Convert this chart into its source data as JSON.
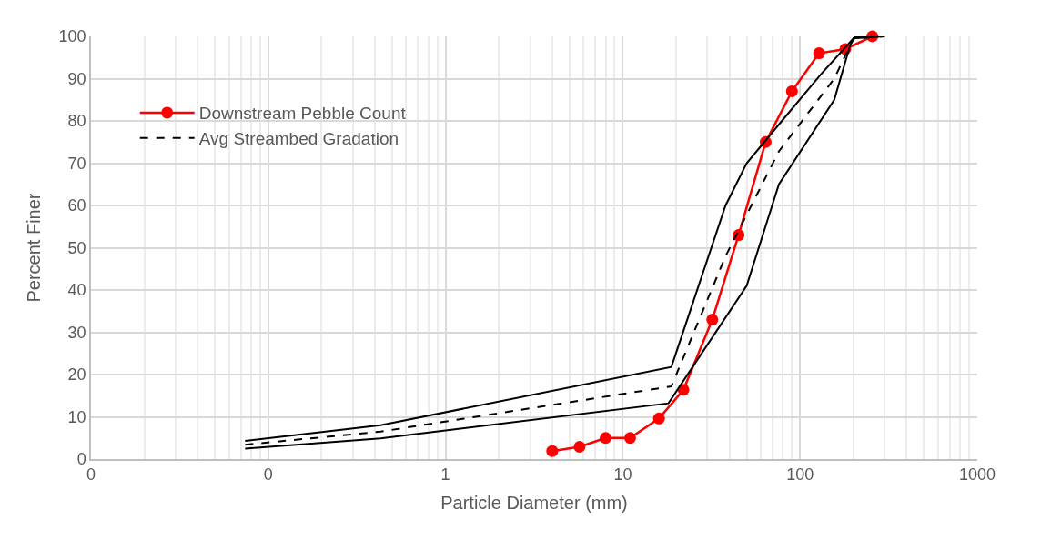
{
  "chart_data": {
    "type": "line",
    "xlabel": "Particle Diameter (mm)",
    "ylabel": "Percent Finer",
    "log": "x",
    "grid": true,
    "legend": "top left",
    "xlim": [
      0.01,
      1000
    ],
    "xticks": [
      {
        "value": 0.01,
        "label": "0"
      },
      {
        "value": 0.1,
        "label": "0"
      },
      1,
      10,
      100,
      1000
    ],
    "ylim": [
      0,
      100
    ],
    "yticks": [
      0,
      10,
      20,
      30,
      40,
      50,
      60,
      70,
      80,
      90,
      100
    ],
    "series": [
      {
        "name": "Downstream Pebble Count",
        "color": "#ff0000",
        "marker": "circle",
        "line_style": "solid",
        "x": [
          4,
          5.7,
          8,
          11,
          16,
          22,
          32,
          45,
          64,
          90,
          128,
          180,
          256
        ],
        "values": [
          1.9,
          2.9,
          5,
          5,
          9.6,
          16.4,
          33,
          53,
          75,
          87,
          96,
          97,
          100
        ]
      },
      {
        "name": "Avg Streambed Gradation",
        "color": "#000000",
        "marker": "none",
        "line_style": "dashed",
        "x": [
          0.074,
          0.43,
          18.8,
          38,
          76,
          156,
          200,
          300
        ],
        "values": [
          3.4,
          6.5,
          17.2,
          48,
          72.8,
          90,
          99.5,
          100
        ]
      },
      {
        "color": "#000000",
        "marker": "none",
        "line_style": "solid",
        "x": [
          0.074,
          0.43,
          18.8,
          38,
          50,
          79,
          131,
          200,
          300
        ],
        "values": [
          4.3,
          8,
          21.8,
          60,
          70,
          80,
          91,
          99.5,
          100
        ]
      },
      {
        "color": "#000000",
        "marker": "none",
        "line_style": "solid",
        "x": [
          0.074,
          0.43,
          18.1,
          50,
          76,
          156,
          192,
          205,
          300
        ],
        "values": [
          2.5,
          4.9,
          13.2,
          41,
          65,
          85,
          98,
          100,
          100
        ]
      }
    ]
  }
}
